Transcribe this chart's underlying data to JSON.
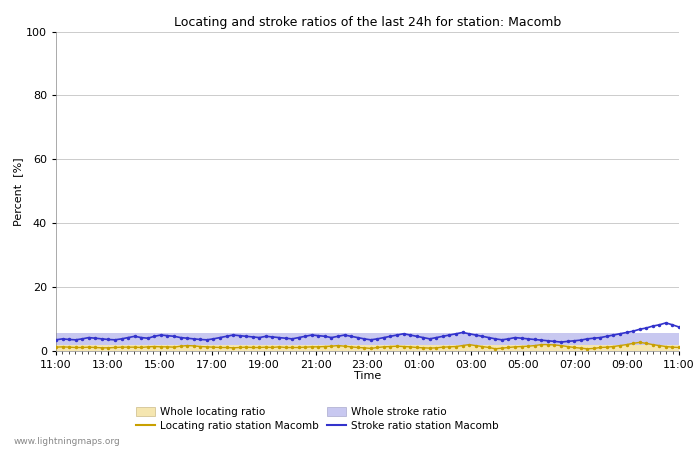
{
  "title": "Locating and stroke ratios of the last 24h for station: Macomb",
  "xlabel": "Time",
  "ylabel": "Percent  [%]",
  "xlim": [
    0,
    24
  ],
  "ylim": [
    0,
    100
  ],
  "yticks": [
    0,
    20,
    40,
    60,
    80,
    100
  ],
  "xtick_labels": [
    "11:00",
    "13:00",
    "15:00",
    "17:00",
    "19:00",
    "21:00",
    "23:00",
    "01:00",
    "03:00",
    "05:00",
    "07:00",
    "09:00",
    "11:00"
  ],
  "watermark": "www.lightningmaps.org",
  "background_color": "#ffffff",
  "plot_bg_color": "#ffffff",
  "grid_color": "#cccccc",
  "whole_locating_color": "#f5e6b0",
  "whole_locating_edge": "#c8a000",
  "whole_stroke_color": "#c8c8f0",
  "whole_stroke_edge": "#aaaadd",
  "locating_line_color": "#c8a000",
  "stroke_line_color": "#3333cc",
  "locating_ratio": [
    1.2,
    1.3,
    1.2,
    1.1,
    1.1,
    1.2,
    1.1,
    1.0,
    1.0,
    1.1,
    1.2,
    1.2,
    1.2,
    1.1,
    1.3,
    1.4,
    1.3,
    1.3,
    1.2,
    1.5,
    1.7,
    1.6,
    1.4,
    1.3,
    1.2,
    1.1,
    1.1,
    1.0,
    1.1,
    1.2,
    1.1,
    1.1,
    1.2,
    1.1,
    1.3,
    1.1,
    1.1,
    1.1,
    1.2,
    1.3,
    1.3,
    1.4,
    1.5,
    1.7,
    1.5,
    1.3,
    1.1,
    1.0,
    0.8,
    1.1,
    1.3,
    1.4,
    1.5,
    1.4,
    1.3,
    1.1,
    1.0,
    0.9,
    1.0,
    1.2,
    1.3,
    1.4,
    1.7,
    2.0,
    1.7,
    1.4,
    1.1,
    0.7,
    0.9,
    1.1,
    1.3,
    1.4,
    1.5,
    1.7,
    2.0,
    2.0,
    1.9,
    1.7,
    1.4,
    1.1,
    0.9,
    0.7,
    0.8,
    1.1,
    1.2,
    1.4,
    1.7,
    2.0,
    2.4,
    2.7,
    2.4,
    2.0,
    1.7,
    1.4,
    1.2,
    1.1
  ],
  "stroke_ratio": [
    3.5,
    3.8,
    3.6,
    3.5,
    3.8,
    4.2,
    4.0,
    3.8,
    3.6,
    3.5,
    3.8,
    4.2,
    4.6,
    4.2,
    4.0,
    4.6,
    5.0,
    4.8,
    4.6,
    4.2,
    4.0,
    3.8,
    3.6,
    3.5,
    3.8,
    4.2,
    4.6,
    5.0,
    4.8,
    4.6,
    4.4,
    4.2,
    4.6,
    4.4,
    4.2,
    4.0,
    3.8,
    4.2,
    4.6,
    5.0,
    4.8,
    4.6,
    4.2,
    4.6,
    5.0,
    4.6,
    4.2,
    3.8,
    3.5,
    3.8,
    4.2,
    4.6,
    5.0,
    5.4,
    5.0,
    4.6,
    4.2,
    3.8,
    4.2,
    4.6,
    5.0,
    5.4,
    5.8,
    5.4,
    5.0,
    4.6,
    4.2,
    3.8,
    3.5,
    3.8,
    4.2,
    4.0,
    3.8,
    3.6,
    3.4,
    3.2,
    3.0,
    2.8,
    3.0,
    3.2,
    3.4,
    3.8,
    4.0,
    4.2,
    4.6,
    5.0,
    5.4,
    5.8,
    6.2,
    6.8,
    7.2,
    7.8,
    8.2,
    8.8,
    8.2,
    7.5
  ],
  "whole_loc_fill": [
    1.8,
    1.8,
    1.8,
    1.8,
    1.8,
    1.8,
    1.8,
    1.8,
    1.8,
    1.8,
    1.8,
    1.8,
    1.8,
    1.8,
    1.8,
    1.8,
    1.8,
    1.8,
    1.8,
    1.8,
    1.8,
    1.8,
    1.8,
    1.8,
    1.8,
    1.8,
    1.8,
    1.8,
    1.8,
    1.8,
    1.8,
    1.8,
    1.8,
    1.8,
    1.8,
    1.8,
    1.8,
    1.8,
    1.8,
    1.8,
    1.8,
    1.8,
    1.8,
    1.8,
    1.8,
    1.8,
    1.8,
    1.8,
    1.8,
    1.8,
    1.8,
    1.8,
    1.8,
    1.8,
    1.8,
    1.8,
    1.8,
    1.8,
    1.8,
    1.8,
    1.8,
    1.8,
    1.8,
    1.8,
    1.8,
    1.8,
    1.8,
    1.8,
    1.8,
    1.8,
    1.8,
    1.8,
    1.8,
    1.8,
    1.8,
    1.8,
    1.8,
    1.8,
    1.8,
    1.8,
    1.8,
    1.8,
    1.8,
    1.8,
    1.8,
    1.8,
    1.8,
    1.8,
    1.8,
    1.8,
    1.8,
    1.8,
    1.8,
    1.8,
    1.8,
    1.8
  ],
  "whole_stroke_fill": [
    5.5,
    5.5,
    5.5,
    5.5,
    5.5,
    5.5,
    5.5,
    5.5,
    5.5,
    5.5,
    5.5,
    5.5,
    5.5,
    5.5,
    5.5,
    5.5,
    5.5,
    5.5,
    5.5,
    5.5,
    5.5,
    5.5,
    5.5,
    5.5,
    5.5,
    5.5,
    5.5,
    5.5,
    5.5,
    5.5,
    5.5,
    5.5,
    5.5,
    5.5,
    5.5,
    5.5,
    5.5,
    5.5,
    5.5,
    5.5,
    5.5,
    5.5,
    5.5,
    5.5,
    5.5,
    5.5,
    5.5,
    5.5,
    5.5,
    5.5,
    5.5,
    5.5,
    5.5,
    5.5,
    5.5,
    5.5,
    5.5,
    5.5,
    5.5,
    5.5,
    5.5,
    5.5,
    5.5,
    5.5,
    5.5,
    5.5,
    5.5,
    5.5,
    5.5,
    5.5,
    5.5,
    5.5,
    5.5,
    5.5,
    5.5,
    5.5,
    5.5,
    5.5,
    5.5,
    5.5,
    5.5,
    5.5,
    5.5,
    5.5,
    5.5,
    5.5,
    5.5,
    5.5,
    5.5,
    5.5,
    5.5,
    5.5,
    5.5,
    5.5,
    5.5,
    5.5
  ]
}
